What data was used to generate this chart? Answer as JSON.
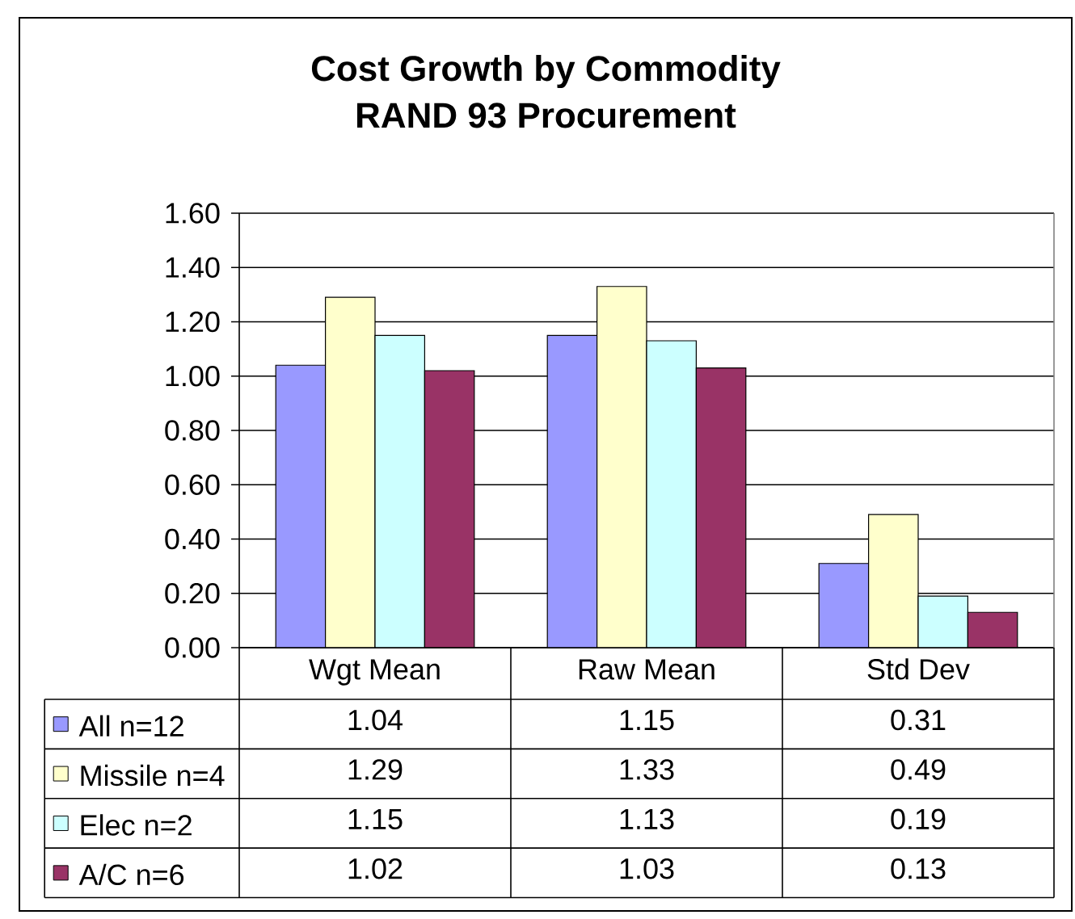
{
  "chart_data": {
    "type": "bar",
    "title": "Cost Growth by Commodity",
    "subtitle": "RAND 93 Procurement",
    "categories": [
      "Wgt Mean",
      "Raw Mean",
      "Std Dev"
    ],
    "series": [
      {
        "name": "All n=12",
        "color": "#9999ff",
        "values": [
          1.04,
          1.15,
          0.31
        ]
      },
      {
        "name": "Missile n=4",
        "color": "#ffffcc",
        "values": [
          1.29,
          1.33,
          0.49
        ]
      },
      {
        "name": "Elec n=2",
        "color": "#ccffff",
        "values": [
          1.15,
          1.13,
          0.19
        ]
      },
      {
        "name": "A/C n=6",
        "color": "#993366",
        "values": [
          1.02,
          1.03,
          0.13
        ]
      }
    ],
    "ylim": [
      0,
      1.6
    ],
    "yticks": [
      {
        "value": 0,
        "label": "0.00"
      },
      {
        "value": 0.2,
        "label": "0.20"
      },
      {
        "value": 0.4,
        "label": "0.40"
      },
      {
        "value": 0.6,
        "label": "0.60"
      },
      {
        "value": 0.8,
        "label": "0.80"
      },
      {
        "value": 1.0,
        "label": "1.00"
      },
      {
        "value": 1.2,
        "label": "1.20"
      },
      {
        "value": 1.4,
        "label": "1.40"
      },
      {
        "value": 1.6,
        "label": "1.60"
      }
    ],
    "grid": "y",
    "legend": "bottom",
    "data_labels": true
  }
}
